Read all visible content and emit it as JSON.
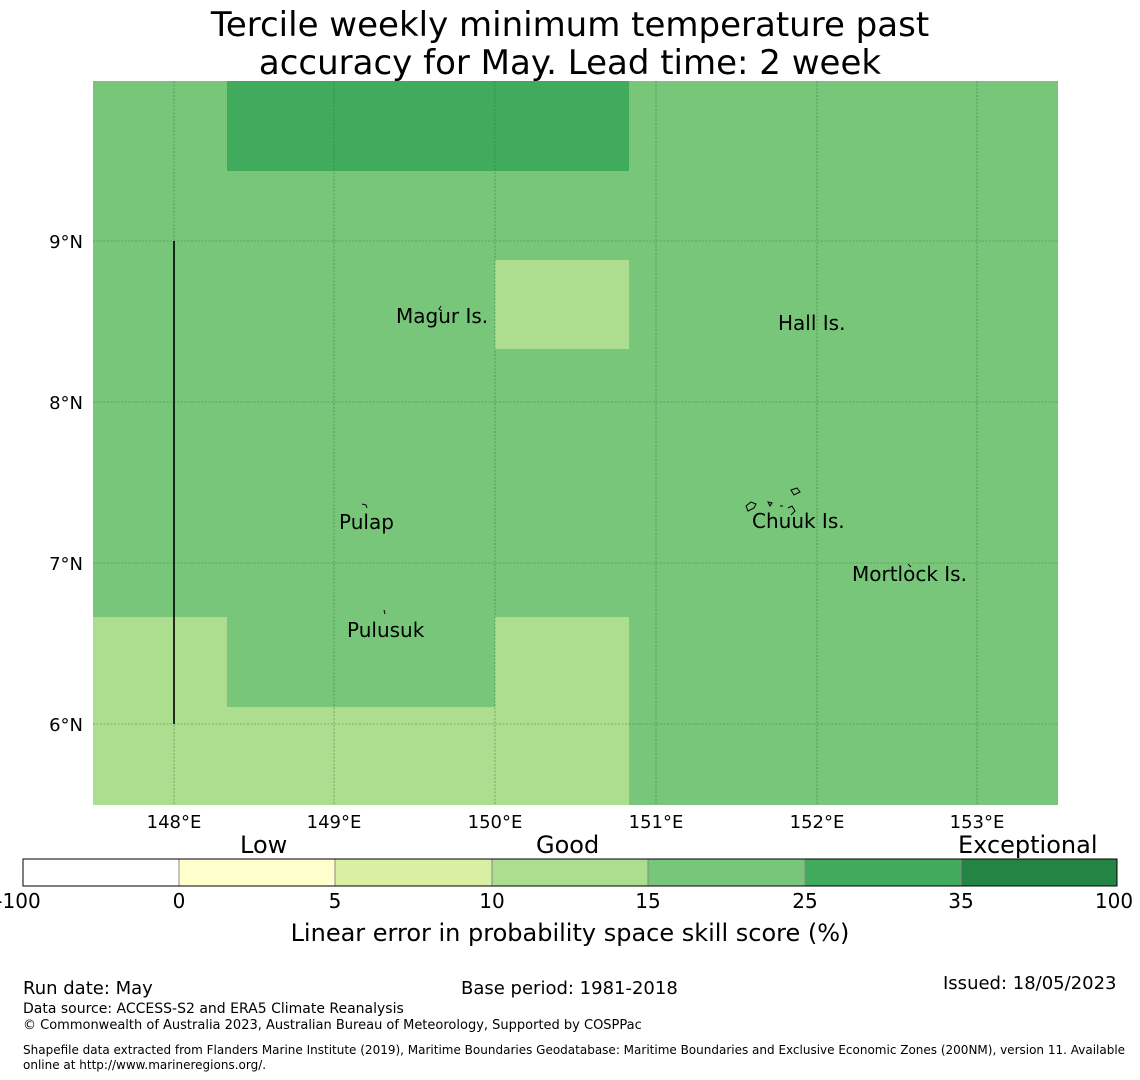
{
  "title": {
    "line1": "Tercile weekly minimum temperature past",
    "line2": "accuracy for May. Lead time: 2 week"
  },
  "map": {
    "lat_labels": [
      "9°N",
      "8°N",
      "7°N",
      "6°N"
    ],
    "lon_labels": [
      "148°E",
      "149°E",
      "150°E",
      "151°E",
      "152°E",
      "153°E"
    ],
    "places": [
      "Magur Is.",
      "Hall Is.",
      "Pulap",
      "Chuuk Is.",
      "Mortlock Is.",
      "Pulusuk"
    ],
    "skill_grid_values_percent": {
      "note_legend_classes": "15-25 dominant, 25-35 northern band, 10-15 south-west and central patch"
    }
  },
  "legend": {
    "categories": [
      "Low",
      "Good",
      "Exceptional"
    ],
    "ticks": [
      "-100",
      "0",
      "5",
      "10",
      "15",
      "25",
      "35",
      "100"
    ],
    "colors": [
      "#ffffff",
      "#ffffcc",
      "#d9f0a3",
      "#addd8e",
      "#78c679",
      "#41ab5d",
      "#238443"
    ],
    "label": "Linear error in probability space skill score (%)"
  },
  "footer": {
    "run_date": "Run date: May",
    "base_period": "Base period: 1981-2018",
    "issued": "Issued: 18/05/2023",
    "data_source": "Data source: ACCESS-S2 and ERA5 Climate Reanalysis",
    "copyright": "© Commonwealth of Australia 2023, Australian Bureau of Meteorology, Supported by COSPPac",
    "shapefile_line1": "Shapefile data extracted from Flanders Marine Institute (2019), Maritime Boundaries Geodatabase: Maritime Boundaries and Exclusive Economic Zones (200NM), version 11. Available",
    "shapefile_line2": "online at http://www.marineregions.org/."
  }
}
